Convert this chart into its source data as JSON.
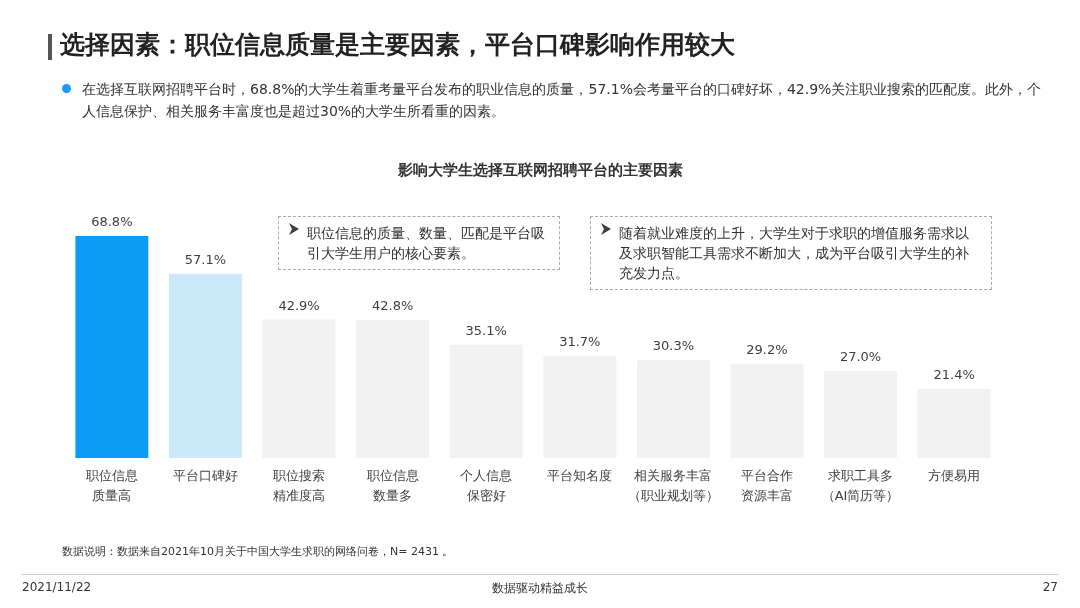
{
  "chart_data": {
    "type": "bar",
    "title": "选择因素：职位信息质量是主要因素，平台口碑影响作用较大",
    "subtitle": "影响大学生选择互联网招聘平台的主要因素",
    "categories": [
      "职位信息质量高",
      "平台口碑好",
      "职位搜索精准度高",
      "职位信息数量多",
      "个人信息保密好",
      "平台知名度",
      "相关服务丰富（职业规划等）",
      "平台合作资源丰富",
      "求职工具多（AI简历等）",
      "方便易用"
    ],
    "values": [
      68.8,
      57.1,
      42.9,
      42.8,
      35.1,
      31.7,
      30.3,
      29.2,
      27.0,
      21.4
    ],
    "value_labels": [
      "68.8%",
      "57.1%",
      "42.9%",
      "42.8%",
      "35.1%",
      "31.7%",
      "30.3%",
      "29.2%",
      "27.0%",
      "21.4%"
    ],
    "colors": [
      "#0d9bf5",
      "#cce9fc",
      "#f2f2f2",
      "#f2f2f2",
      "#f2f2f2",
      "#f2f2f2",
      "#f2f2f2",
      "#f2f2f2",
      "#f2f2f2",
      "#f2f2f2"
    ],
    "annotations": [
      "在选择互联网招聘平台时，68.8%的大学生着重考量平台发布的职业信息的质量，57.1%会考量平台的口碑好坏，42.9%关注职业搜索的匹配度。此外，个人信息保护、相关服务丰富度也是超过30%的大学生所看重的因素。",
      "职位信息的质量、数量、匹配是平台吸引大学生用户的核心要素。",
      "随着就业难度的上升，大学生对于求职的增值服务需求以及求职智能工具需求不断加大，成为平台吸引大学生的补充发力点。",
      "数据说明：数据来自2021年10月关于中国大学生求职的网络问卷，N= 2431 。",
      "2021/11/22",
      "数据驱动精益成长",
      "27"
    ]
  }
}
